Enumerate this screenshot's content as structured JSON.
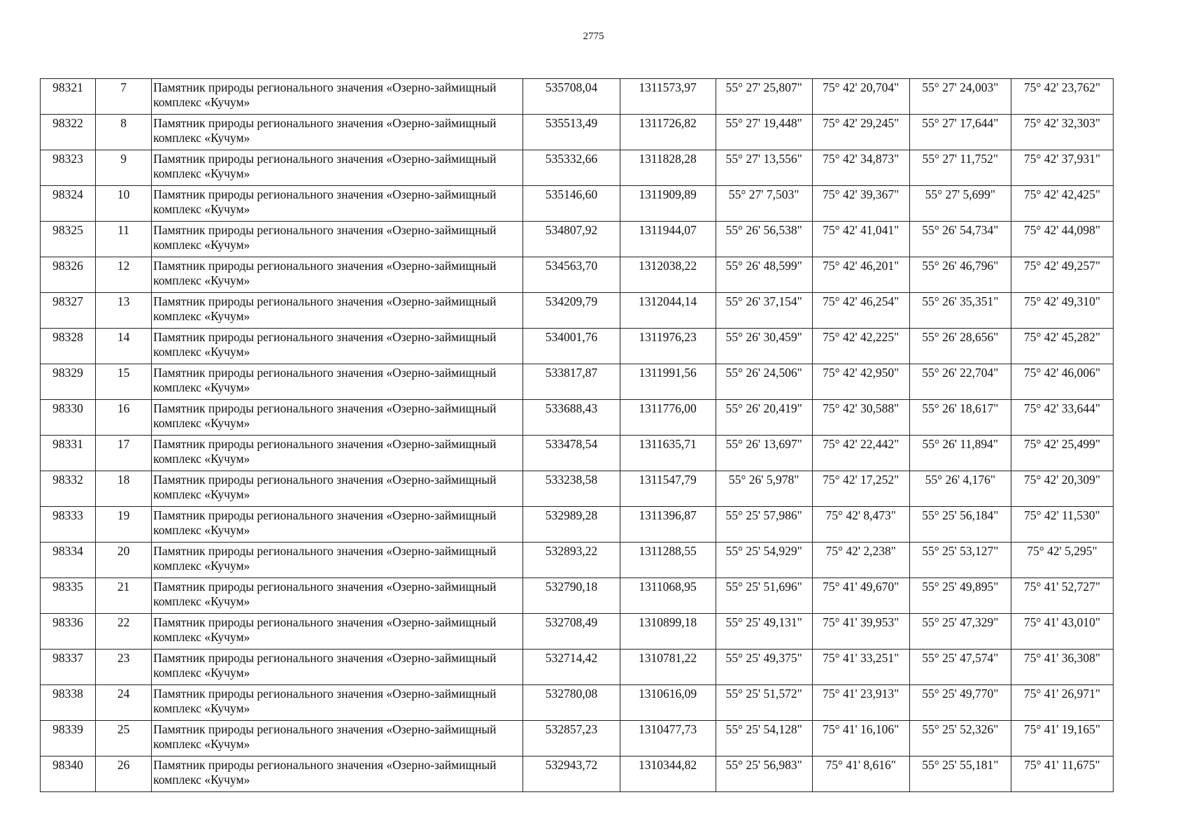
{
  "page_number": "2775",
  "rows": [
    {
      "id": "98321",
      "n": "7",
      "name": "Памятник природы регионального значения «Озерно-займищный комплекс «Кучум»",
      "x": "535708,04",
      "y": "1311573,97",
      "lat1": "55° 27' 25,807\"",
      "lon1": "75° 42' 20,704\"",
      "lat2": "55° 27' 24,003\"",
      "lon2": "75° 42' 23,762\""
    },
    {
      "id": "98322",
      "n": "8",
      "name": "Памятник природы регионального значения «Озерно-займищный комплекс «Кучум»",
      "x": "535513,49",
      "y": "1311726,82",
      "lat1": "55° 27' 19,448\"",
      "lon1": "75° 42' 29,245\"",
      "lat2": "55° 27' 17,644\"",
      "lon2": "75° 42' 32,303\""
    },
    {
      "id": "98323",
      "n": "9",
      "name": "Памятник природы регионального значения «Озерно-займищный комплекс «Кучум»",
      "x": "535332,66",
      "y": "1311828,28",
      "lat1": "55° 27' 13,556\"",
      "lon1": "75° 42' 34,873\"",
      "lat2": "55° 27' 11,752\"",
      "lon2": "75° 42' 37,931\""
    },
    {
      "id": "98324",
      "n": "10",
      "name": "Памятник природы регионального значения «Озерно-займищный комплекс «Кучум»",
      "x": "535146,60",
      "y": "1311909,89",
      "lat1": "55° 27' 7,503\"",
      "lon1": "75° 42' 39,367\"",
      "lat2": "55° 27' 5,699\"",
      "lon2": "75° 42' 42,425\""
    },
    {
      "id": "98325",
      "n": "11",
      "name": "Памятник природы регионального значения «Озерно-займищный комплекс «Кучум»",
      "x": "534807,92",
      "y": "1311944,07",
      "lat1": "55° 26' 56,538\"",
      "lon1": "75° 42' 41,041\"",
      "lat2": "55° 26' 54,734\"",
      "lon2": "75° 42' 44,098\""
    },
    {
      "id": "98326",
      "n": "12",
      "name": "Памятник природы регионального значения «Озерно-займищный комплекс «Кучум»",
      "x": "534563,70",
      "y": "1312038,22",
      "lat1": "55° 26' 48,599\"",
      "lon1": "75° 42' 46,201\"",
      "lat2": "55° 26' 46,796\"",
      "lon2": "75° 42' 49,257\""
    },
    {
      "id": "98327",
      "n": "13",
      "name": "Памятник природы регионального значения «Озерно-займищный комплекс «Кучум»",
      "x": "534209,79",
      "y": "1312044,14",
      "lat1": "55° 26' 37,154\"",
      "lon1": "75° 42' 46,254\"",
      "lat2": "55° 26' 35,351\"",
      "lon2": "75° 42' 49,310\""
    },
    {
      "id": "98328",
      "n": "14",
      "name": "Памятник природы регионального значения «Озерно-займищный комплекс «Кучум»",
      "x": "534001,76",
      "y": "1311976,23",
      "lat1": "55° 26' 30,459\"",
      "lon1": "75° 42' 42,225\"",
      "lat2": "55° 26' 28,656\"",
      "lon2": "75° 42' 45,282\""
    },
    {
      "id": "98329",
      "n": "15",
      "name": "Памятник природы регионального значения «Озерно-займищный комплекс «Кучум»",
      "x": "533817,87",
      "y": "1311991,56",
      "lat1": "55° 26' 24,506\"",
      "lon1": "75° 42' 42,950\"",
      "lat2": "55° 26' 22,704\"",
      "lon2": "75° 42' 46,006\""
    },
    {
      "id": "98330",
      "n": "16",
      "name": "Памятник природы регионального значения «Озерно-займищный комплекс «Кучум»",
      "x": "533688,43",
      "y": "1311776,00",
      "lat1": "55° 26' 20,419\"",
      "lon1": "75° 42' 30,588\"",
      "lat2": "55° 26' 18,617\"",
      "lon2": "75° 42' 33,644\""
    },
    {
      "id": "98331",
      "n": "17",
      "name": "Памятник природы регионального значения «Озерно-займищный комплекс «Кучум»",
      "x": "533478,54",
      "y": "1311635,71",
      "lat1": "55° 26' 13,697\"",
      "lon1": "75° 42' 22,442\"",
      "lat2": "55° 26' 11,894\"",
      "lon2": "75° 42' 25,499\""
    },
    {
      "id": "98332",
      "n": "18",
      "name": "Памятник природы регионального значения «Озерно-займищный комплекс «Кучум»",
      "x": "533238,58",
      "y": "1311547,79",
      "lat1": "55° 26' 5,978\"",
      "lon1": "75° 42' 17,252\"",
      "lat2": "55° 26' 4,176\"",
      "lon2": "75° 42' 20,309\""
    },
    {
      "id": "98333",
      "n": "19",
      "name": "Памятник природы регионального значения «Озерно-займищный комплекс «Кучум»",
      "x": "532989,28",
      "y": "1311396,87",
      "lat1": "55° 25' 57,986\"",
      "lon1": "75° 42' 8,473\"",
      "lat2": "55° 25' 56,184\"",
      "lon2": "75° 42' 11,530\""
    },
    {
      "id": "98334",
      "n": "20",
      "name": "Памятник природы регионального значения «Озерно-займищный комплекс «Кучум»",
      "x": "532893,22",
      "y": "1311288,55",
      "lat1": "55° 25' 54,929\"",
      "lon1": "75° 42' 2,238\"",
      "lat2": "55° 25' 53,127\"",
      "lon2": "75° 42' 5,295\""
    },
    {
      "id": "98335",
      "n": "21",
      "name": "Памятник природы регионального значения «Озерно-займищный комплекс «Кучум»",
      "x": "532790,18",
      "y": "1311068,95",
      "lat1": "55° 25' 51,696\"",
      "lon1": "75° 41' 49,670\"",
      "lat2": "55° 25' 49,895\"",
      "lon2": "75° 41' 52,727\""
    },
    {
      "id": "98336",
      "n": "22",
      "name": "Памятник природы регионального значения «Озерно-займищный комплекс «Кучум»",
      "x": "532708,49",
      "y": "1310899,18",
      "lat1": "55° 25' 49,131\"",
      "lon1": "75° 41' 39,953\"",
      "lat2": "55° 25' 47,329\"",
      "lon2": "75° 41' 43,010\""
    },
    {
      "id": "98337",
      "n": "23",
      "name": "Памятник природы регионального значения «Озерно-займищный комплекс «Кучум»",
      "x": "532714,42",
      "y": "1310781,22",
      "lat1": "55° 25' 49,375\"",
      "lon1": "75° 41' 33,251\"",
      "lat2": "55° 25' 47,574\"",
      "lon2": "75° 41' 36,308\""
    },
    {
      "id": "98338",
      "n": "24",
      "name": "Памятник природы регионального значения «Озерно-займищный комплекс «Кучум»",
      "x": "532780,08",
      "y": "1310616,09",
      "lat1": "55° 25' 51,572\"",
      "lon1": "75° 41' 23,913\"",
      "lat2": "55° 25' 49,770\"",
      "lon2": "75° 41' 26,971\""
    },
    {
      "id": "98339",
      "n": "25",
      "name": "Памятник природы регионального значения «Озерно-займищный комплекс «Кучум»",
      "x": "532857,23",
      "y": "1310477,73",
      "lat1": "55° 25' 54,128\"",
      "lon1": "75° 41' 16,106\"",
      "lat2": "55° 25' 52,326\"",
      "lon2": "75° 41' 19,165\""
    },
    {
      "id": "98340",
      "n": "26",
      "name": "Памятник природы регионального значения «Озерно-займищный комплекс «Кучум»",
      "x": "532943,72",
      "y": "1310344,82",
      "lat1": "55° 25' 56,983\"",
      "lon1": "75° 41' 8,616\"",
      "lat2": "55° 25' 55,181\"",
      "lon2": "75° 41' 11,675\""
    }
  ]
}
